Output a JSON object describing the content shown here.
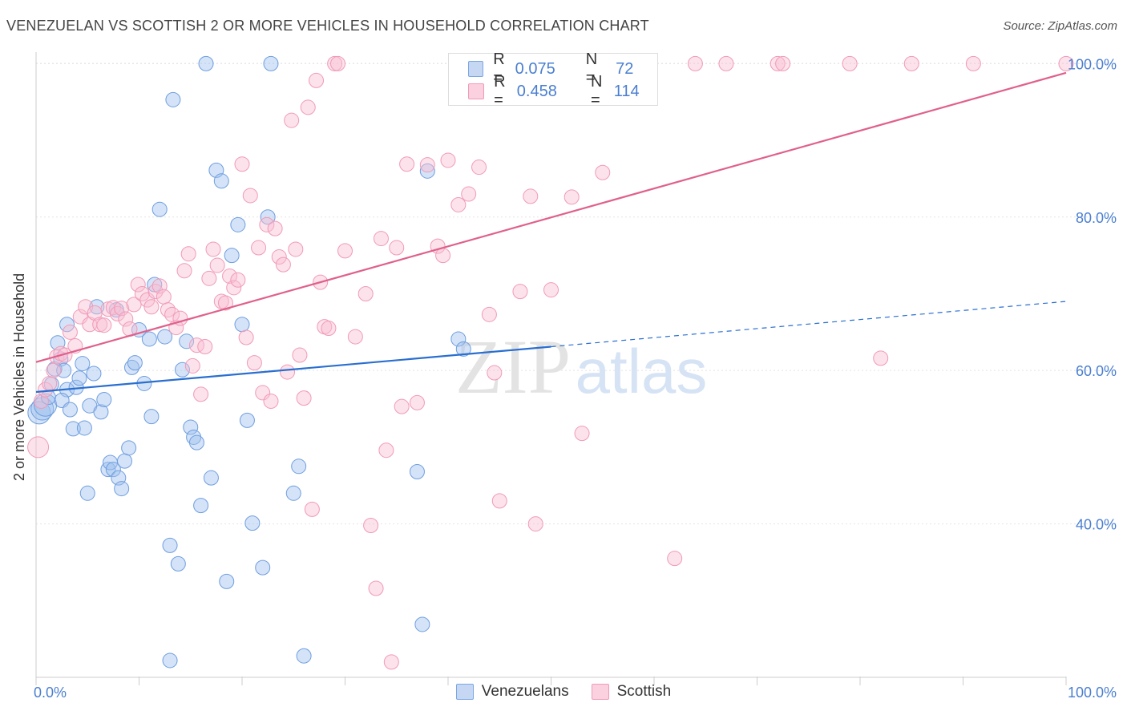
{
  "title": "VENEZUELAN VS SCOTTISH 2 OR MORE VEHICLES IN HOUSEHOLD CORRELATION CHART",
  "source": "Source: ZipAtlas.com",
  "watermark": {
    "zip": "ZIP",
    "atlas": "atlas"
  },
  "legend": {
    "venezuelans": {
      "r_label": "R = ",
      "r_value": "0.075",
      "n_label": "N = ",
      "n_value": "72"
    },
    "scottish": {
      "r_label": "R = ",
      "r_value": "0.458",
      "n_label": "N = ",
      "n_value": "114"
    }
  },
  "colors": {
    "venezuelans": "#6f9ee0",
    "scottish": "#f19ab8",
    "venezuelans_line": "#2a6fd0",
    "scottish_line": "#e0608c",
    "axis_label": "#4a7fd1"
  },
  "chart_data": {
    "type": "scatter",
    "title": "VENEZUELAN VS SCOTTISH 2 OR MORE VEHICLES IN HOUSEHOLD CORRELATION CHART",
    "xlabel": "",
    "ylabel": "2 or more Vehicles in Household",
    "xlim": [
      0,
      100
    ],
    "ylim": [
      20,
      101.5
    ],
    "x_tick_labels": [
      "0.0%",
      "100.0%"
    ],
    "y_ticks": [
      40,
      60,
      80,
      100
    ],
    "y_tick_labels": [
      "40.0%",
      "60.0%",
      "80.0%",
      "100.0%"
    ],
    "grid": true,
    "legend_position": "top-center",
    "series": [
      {
        "name": "Venezuelans",
        "trend": {
          "x": [
            0,
            50
          ],
          "y": [
            57.2,
            63.1
          ],
          "dashed_to": [
            100,
            69.0
          ]
        },
        "points": [
          [
            0.3,
            54.5
          ],
          [
            0.6,
            55.0
          ],
          [
            0.9,
            55.5
          ],
          [
            1.2,
            56.5
          ],
          [
            1.5,
            58.2
          ],
          [
            1.8,
            60.2
          ],
          [
            2.1,
            63.6
          ],
          [
            2.4,
            61.5
          ],
          [
            2.7,
            60.0
          ],
          [
            3.0,
            57.5
          ],
          [
            2.5,
            56.1
          ],
          [
            3.3,
            54.9
          ],
          [
            3.0,
            66.0
          ],
          [
            3.6,
            52.4
          ],
          [
            3.9,
            57.8
          ],
          [
            4.2,
            59.0
          ],
          [
            4.5,
            60.9
          ],
          [
            4.7,
            52.5
          ],
          [
            5.0,
            44.0
          ],
          [
            5.2,
            55.4
          ],
          [
            5.6,
            59.6
          ],
          [
            5.9,
            68.3
          ],
          [
            6.3,
            54.6
          ],
          [
            6.6,
            56.2
          ],
          [
            7.0,
            47.1
          ],
          [
            7.2,
            48.0
          ],
          [
            7.5,
            47.1
          ],
          [
            7.8,
            67.9
          ],
          [
            8.0,
            46.0
          ],
          [
            8.3,
            44.6
          ],
          [
            8.6,
            48.2
          ],
          [
            9.0,
            49.9
          ],
          [
            9.3,
            60.4
          ],
          [
            9.6,
            61.0
          ],
          [
            10.0,
            65.3
          ],
          [
            10.5,
            58.3
          ],
          [
            11.0,
            64.1
          ],
          [
            11.2,
            54.0
          ],
          [
            11.5,
            71.2
          ],
          [
            12.0,
            81.0
          ],
          [
            12.5,
            64.4
          ],
          [
            13.0,
            37.2
          ],
          [
            13.3,
            95.3
          ],
          [
            13.8,
            34.8
          ],
          [
            14.2,
            60.1
          ],
          [
            14.6,
            63.8
          ],
          [
            15.0,
            52.6
          ],
          [
            15.3,
            51.3
          ],
          [
            15.6,
            50.6
          ],
          [
            16.0,
            42.4
          ],
          [
            16.5,
            100.0
          ],
          [
            17.0,
            46.0
          ],
          [
            17.5,
            86.1
          ],
          [
            18.0,
            84.7
          ],
          [
            18.5,
            32.5
          ],
          [
            19.0,
            75.0
          ],
          [
            19.6,
            79.0
          ],
          [
            20.0,
            66.0
          ],
          [
            20.5,
            53.5
          ],
          [
            21.0,
            40.1
          ],
          [
            22.0,
            34.3
          ],
          [
            22.5,
            80.0
          ],
          [
            22.8,
            100.0
          ],
          [
            25.0,
            44.0
          ],
          [
            25.5,
            47.5
          ],
          [
            26.0,
            22.8
          ],
          [
            37.0,
            46.8
          ],
          [
            37.5,
            26.9
          ],
          [
            38.0,
            86.0
          ],
          [
            41.0,
            64.1
          ],
          [
            41.5,
            62.8
          ],
          [
            13.0,
            22.2
          ]
        ]
      },
      {
        "name": "Scottish",
        "trend": {
          "x": [
            0,
            100
          ],
          "y": [
            61.1,
            98.8
          ]
        },
        "points": [
          [
            0.2,
            50.0
          ],
          [
            0.5,
            56.0
          ],
          [
            0.9,
            57.5
          ],
          [
            1.3,
            58.3
          ],
          [
            1.7,
            60.0
          ],
          [
            2.0,
            61.8
          ],
          [
            2.4,
            62.2
          ],
          [
            2.8,
            62.0
          ],
          [
            3.3,
            65.0
          ],
          [
            3.8,
            63.2
          ],
          [
            4.3,
            67.0
          ],
          [
            4.8,
            68.3
          ],
          [
            5.2,
            66.0
          ],
          [
            5.7,
            67.5
          ],
          [
            6.2,
            66.0
          ],
          [
            6.6,
            65.9
          ],
          [
            7.0,
            68.0
          ],
          [
            7.5,
            68.2
          ],
          [
            7.9,
            67.4
          ],
          [
            8.3,
            68.1
          ],
          [
            8.7,
            66.7
          ],
          [
            9.1,
            65.4
          ],
          [
            9.5,
            68.6
          ],
          [
            9.9,
            71.2
          ],
          [
            10.3,
            70.0
          ],
          [
            10.8,
            69.2
          ],
          [
            11.2,
            68.3
          ],
          [
            11.6,
            70.3
          ],
          [
            12.0,
            71.0
          ],
          [
            12.4,
            69.6
          ],
          [
            12.8,
            67.9
          ],
          [
            13.2,
            67.3
          ],
          [
            13.6,
            65.6
          ],
          [
            14.0,
            66.8
          ],
          [
            14.4,
            73.0
          ],
          [
            14.8,
            75.2
          ],
          [
            15.2,
            60.6
          ],
          [
            15.6,
            63.3
          ],
          [
            16.0,
            56.9
          ],
          [
            16.4,
            63.1
          ],
          [
            16.8,
            72.0
          ],
          [
            17.2,
            75.8
          ],
          [
            17.6,
            73.7
          ],
          [
            18.0,
            69.0
          ],
          [
            18.4,
            68.8
          ],
          [
            18.8,
            72.3
          ],
          [
            19.2,
            70.8
          ],
          [
            19.6,
            71.8
          ],
          [
            20.0,
            86.9
          ],
          [
            20.4,
            64.3
          ],
          [
            20.8,
            82.8
          ],
          [
            21.2,
            61.0
          ],
          [
            21.6,
            76.0
          ],
          [
            22.0,
            57.1
          ],
          [
            22.4,
            79.0
          ],
          [
            22.8,
            56.0
          ],
          [
            23.2,
            78.5
          ],
          [
            23.6,
            74.8
          ],
          [
            24.0,
            73.8
          ],
          [
            24.4,
            59.8
          ],
          [
            24.8,
            92.6
          ],
          [
            25.2,
            75.8
          ],
          [
            25.6,
            62.0
          ],
          [
            26.0,
            56.4
          ],
          [
            26.4,
            94.3
          ],
          [
            26.8,
            41.9
          ],
          [
            27.2,
            97.8
          ],
          [
            27.6,
            71.5
          ],
          [
            28.0,
            65.7
          ],
          [
            28.4,
            65.5
          ],
          [
            29.0,
            100.0
          ],
          [
            29.3,
            100.0
          ],
          [
            30.0,
            75.6
          ],
          [
            31.0,
            64.4
          ],
          [
            32.0,
            70.0
          ],
          [
            32.5,
            39.8
          ],
          [
            33.0,
            31.6
          ],
          [
            33.5,
            77.2
          ],
          [
            34.0,
            49.6
          ],
          [
            35.0,
            76.0
          ],
          [
            35.5,
            55.3
          ],
          [
            36.0,
            86.9
          ],
          [
            37.0,
            55.8
          ],
          [
            38.0,
            86.8
          ],
          [
            39.0,
            76.2
          ],
          [
            39.5,
            75.0
          ],
          [
            40.0,
            87.4
          ],
          [
            41.0,
            81.6
          ],
          [
            42.0,
            83.0
          ],
          [
            43.0,
            86.5
          ],
          [
            44.0,
            67.3
          ],
          [
            44.5,
            59.7
          ],
          [
            45.0,
            43.0
          ],
          [
            46.0,
            100.0
          ],
          [
            47.0,
            70.3
          ],
          [
            48.0,
            82.7
          ],
          [
            48.5,
            40.0
          ],
          [
            50.0,
            70.5
          ],
          [
            52.0,
            82.6
          ],
          [
            53.0,
            51.8
          ],
          [
            55.0,
            85.8
          ],
          [
            59.0,
            100.0
          ],
          [
            62.0,
            35.5
          ],
          [
            64.0,
            100.0
          ],
          [
            67.0,
            100.0
          ],
          [
            72.0,
            100.0
          ],
          [
            72.5,
            100.0
          ],
          [
            79.0,
            100.0
          ],
          [
            82.0,
            61.6
          ],
          [
            85.0,
            100.0
          ],
          [
            91.0,
            100.0
          ],
          [
            100.0,
            100.0
          ],
          [
            56.0,
            100.0
          ],
          [
            34.5,
            22.0
          ]
        ]
      }
    ]
  }
}
